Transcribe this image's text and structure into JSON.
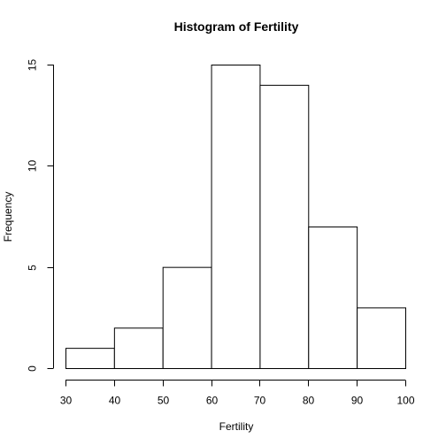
{
  "chart_data": {
    "type": "bar",
    "title": "Histogram of Fertility",
    "xlabel": "Fertility",
    "ylabel": "Frequency",
    "bins": [
      {
        "from": 30,
        "to": 40,
        "count": 1
      },
      {
        "from": 40,
        "to": 50,
        "count": 2
      },
      {
        "from": 50,
        "to": 60,
        "count": 5
      },
      {
        "from": 60,
        "to": 70,
        "count": 15
      },
      {
        "from": 70,
        "to": 80,
        "count": 14
      },
      {
        "from": 80,
        "to": 90,
        "count": 7
      },
      {
        "from": 90,
        "to": 100,
        "count": 3
      }
    ],
    "xlim": [
      30,
      100
    ],
    "ylim": [
      0,
      15
    ],
    "x_ticks": [
      "30",
      "40",
      "50",
      "60",
      "70",
      "80",
      "90",
      "100"
    ],
    "y_ticks": [
      "0",
      "5",
      "10",
      "15"
    ],
    "grid": false,
    "colors": {
      "bar_fill": "#ffffff",
      "bar_stroke": "#000000"
    }
  }
}
